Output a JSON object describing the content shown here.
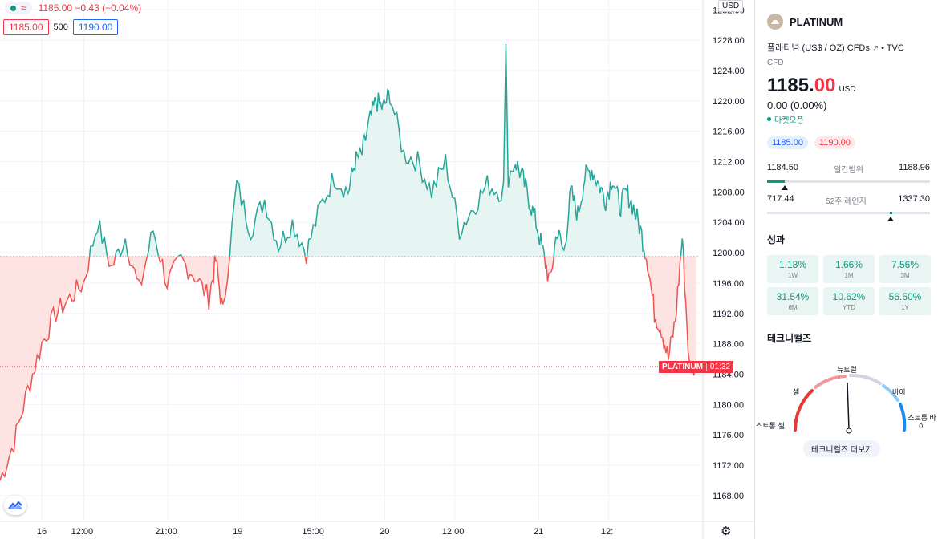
{
  "legend": {
    "values": "1185.00  −0.43  (−0.04%)",
    "wave_icon": "≈"
  },
  "bidask": {
    "bid": "1185.00",
    "spread": "500",
    "ask": "1190.00"
  },
  "currency_tag": "USD",
  "price_label": {
    "symbol": "PLATINUM",
    "countdown": "01:32"
  },
  "chart_data": {
    "type": "area",
    "title": "",
    "xlabel": "",
    "ylabel": "",
    "ylim": [
      1164.6,
      1233.3
    ],
    "baseline": 1199.5,
    "last_price": 1185,
    "yticks": [
      1168,
      1172,
      1176,
      1180,
      1184,
      1188,
      1192,
      1196,
      1200,
      1204,
      1208,
      1212,
      1216,
      1220,
      1224,
      1228,
      1232
    ],
    "ytick_labels": [
      "1168.00",
      "1172.00",
      "1176.00",
      "1180.00",
      "1184.00",
      "1188.00",
      "1192.00",
      "1196.00",
      "1200.00",
      "1204.00",
      "1208.00",
      "1212.00",
      "1216.00",
      "1220.00",
      "1224.00",
      "1228.00",
      "1232.00"
    ],
    "xticks": [
      "16",
      "12:00",
      "21:00",
      "19",
      "15:00",
      "20",
      "12:00",
      "21",
      "12:"
    ],
    "xtick_positions": [
      0.06,
      0.12,
      0.24,
      0.34,
      0.45,
      0.55,
      0.65,
      0.77,
      0.87
    ],
    "colors": {
      "up_line": "#26a69a",
      "up_fill": "#e6f5f1",
      "down_line": "#ef5350",
      "down_fill": "#fde3e2"
    },
    "series": [
      {
        "x": [
          0,
          0.02,
          0.04,
          0.06,
          0.08,
          0.1,
          0.12,
          0.14,
          0.16,
          0.18,
          0.2,
          0.22,
          0.24,
          0.26,
          0.28,
          0.3,
          0.31,
          0.32,
          0.34,
          0.36,
          0.38,
          0.4,
          0.42,
          0.44,
          0.46,
          0.48,
          0.5,
          0.51,
          0.52,
          0.53,
          0.54,
          0.55,
          0.56,
          0.58,
          0.6,
          0.62,
          0.64,
          0.66,
          0.68,
          0.7,
          0.72,
          0.74,
          0.75,
          0.76,
          0.77,
          0.78,
          0.79,
          0.8,
          0.81,
          0.82,
          0.83,
          0.84,
          0.85,
          0.86,
          0.87,
          0.88,
          0.89,
          0.9,
          0.91,
          0.92,
          0.93,
          0.94,
          0.95,
          0.96,
          0.97,
          0.98,
          0.99,
          1.0
        ],
        "values": [
          1170,
          1175,
          1182,
          1188,
          1192,
          1194,
          1196,
          1204,
          1198,
          1202,
          1195,
          1203,
          1196,
          1199,
          1197,
          1194,
          1199,
          1192,
          1209,
          1203,
          1207,
          1201,
          1204,
          1200,
          1206,
          1210,
          1208,
          1212,
          1213,
          1217,
          1220,
          1219,
          1221,
          1213,
          1212,
          1208,
          1212,
          1203,
          1206,
          1209,
          1208,
          1212,
          1210,
          1207,
          1204,
          1200,
          1196,
          1203,
          1200,
          1208,
          1205,
          1210,
          1211,
          1209,
          1207,
          1210,
          1206,
          1208,
          1206,
          1203,
          1199,
          1192,
          1190,
          1186,
          1191,
          1202,
          1185,
          1185
        ]
      }
    ]
  },
  "side": {
    "symbol": "PLATINUM",
    "description": "플래티넘 (US$ / OZ) CFDs",
    "source": "• TVC",
    "type": "CFD",
    "price_int": "1185.",
    "price_dec": "00",
    "currency": "USD",
    "change": "0.00 (0.00%)",
    "market_status": "마켓오픈",
    "bid": "1185.00",
    "ask": "1190.00",
    "day_range": {
      "low": "1184.50",
      "label": "일간범위",
      "high": "1188.96"
    },
    "year_range": {
      "low": "717.44",
      "label": "52주 레인지",
      "high": "1337.30"
    },
    "performance_title": "성과",
    "performance": [
      {
        "value": "1.18%",
        "label": "1W"
      },
      {
        "value": "1.66%",
        "label": "1M"
      },
      {
        "value": "7.56%",
        "label": "3M"
      },
      {
        "value": "31.54%",
        "label": "6M"
      },
      {
        "value": "10.62%",
        "label": "YTD"
      },
      {
        "value": "56.50%",
        "label": "1Y"
      }
    ],
    "technicals_title": "테크니컬즈",
    "gauge": {
      "strong_sell": "스트롱 셀",
      "sell": "셀",
      "neutral": "뉴트럴",
      "buy": "바이",
      "strong_buy": "스트롱 바이",
      "more": "테크니컬즈 더보기"
    }
  }
}
